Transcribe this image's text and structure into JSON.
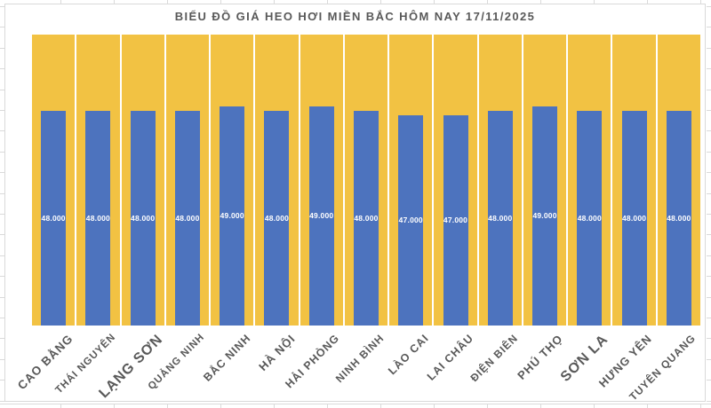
{
  "chart": {
    "title": "BIỂU ĐỒ GIÁ HEO HƠI MIỀN BẮC HÔM NAY 17/11/2025"
  },
  "chart_data": {
    "type": "bar",
    "title": "BIỂU ĐỒ GIÁ HEO HƠI MIỀN BẮC HÔM NAY 17/11/2025",
    "categories": [
      "CAO BẰNG",
      "THÁI NGUYÊN",
      "LẠNG SƠN",
      "QUẢNG NINH",
      "BẮC NINH",
      "HÀ NỘI",
      "HẢI PHÒNG",
      "NINH BÌNH",
      "LÀO CAI",
      "LAI CHÂU",
      "ĐIỆN BIÊN",
      "PHÚ THỌ",
      "SƠN LA",
      "HƯNG YÊN",
      "TUYÊN QUANG"
    ],
    "values": [
      48000,
      48000,
      48000,
      48000,
      49000,
      48000,
      49000,
      48000,
      47000,
      47000,
      48000,
      49000,
      48000,
      48000,
      48000
    ],
    "value_labels": [
      "48.000",
      "48.000",
      "48.000",
      "48.000",
      "49.000",
      "48.000",
      "49.000",
      "48.000",
      "47.000",
      "47.000",
      "48.000",
      "49.000",
      "48.000",
      "48.000",
      "48.000"
    ],
    "xlabel": "",
    "ylabel": "",
    "ylim": [
      0,
      65000
    ],
    "grid": false,
    "legend": false,
    "colors": {
      "bar": "#4D73BE",
      "background_column": "#F2C243",
      "title_text": "#595959",
      "axis_label_text": "#595959",
      "value_label_text": "#FFFFFF"
    }
  }
}
